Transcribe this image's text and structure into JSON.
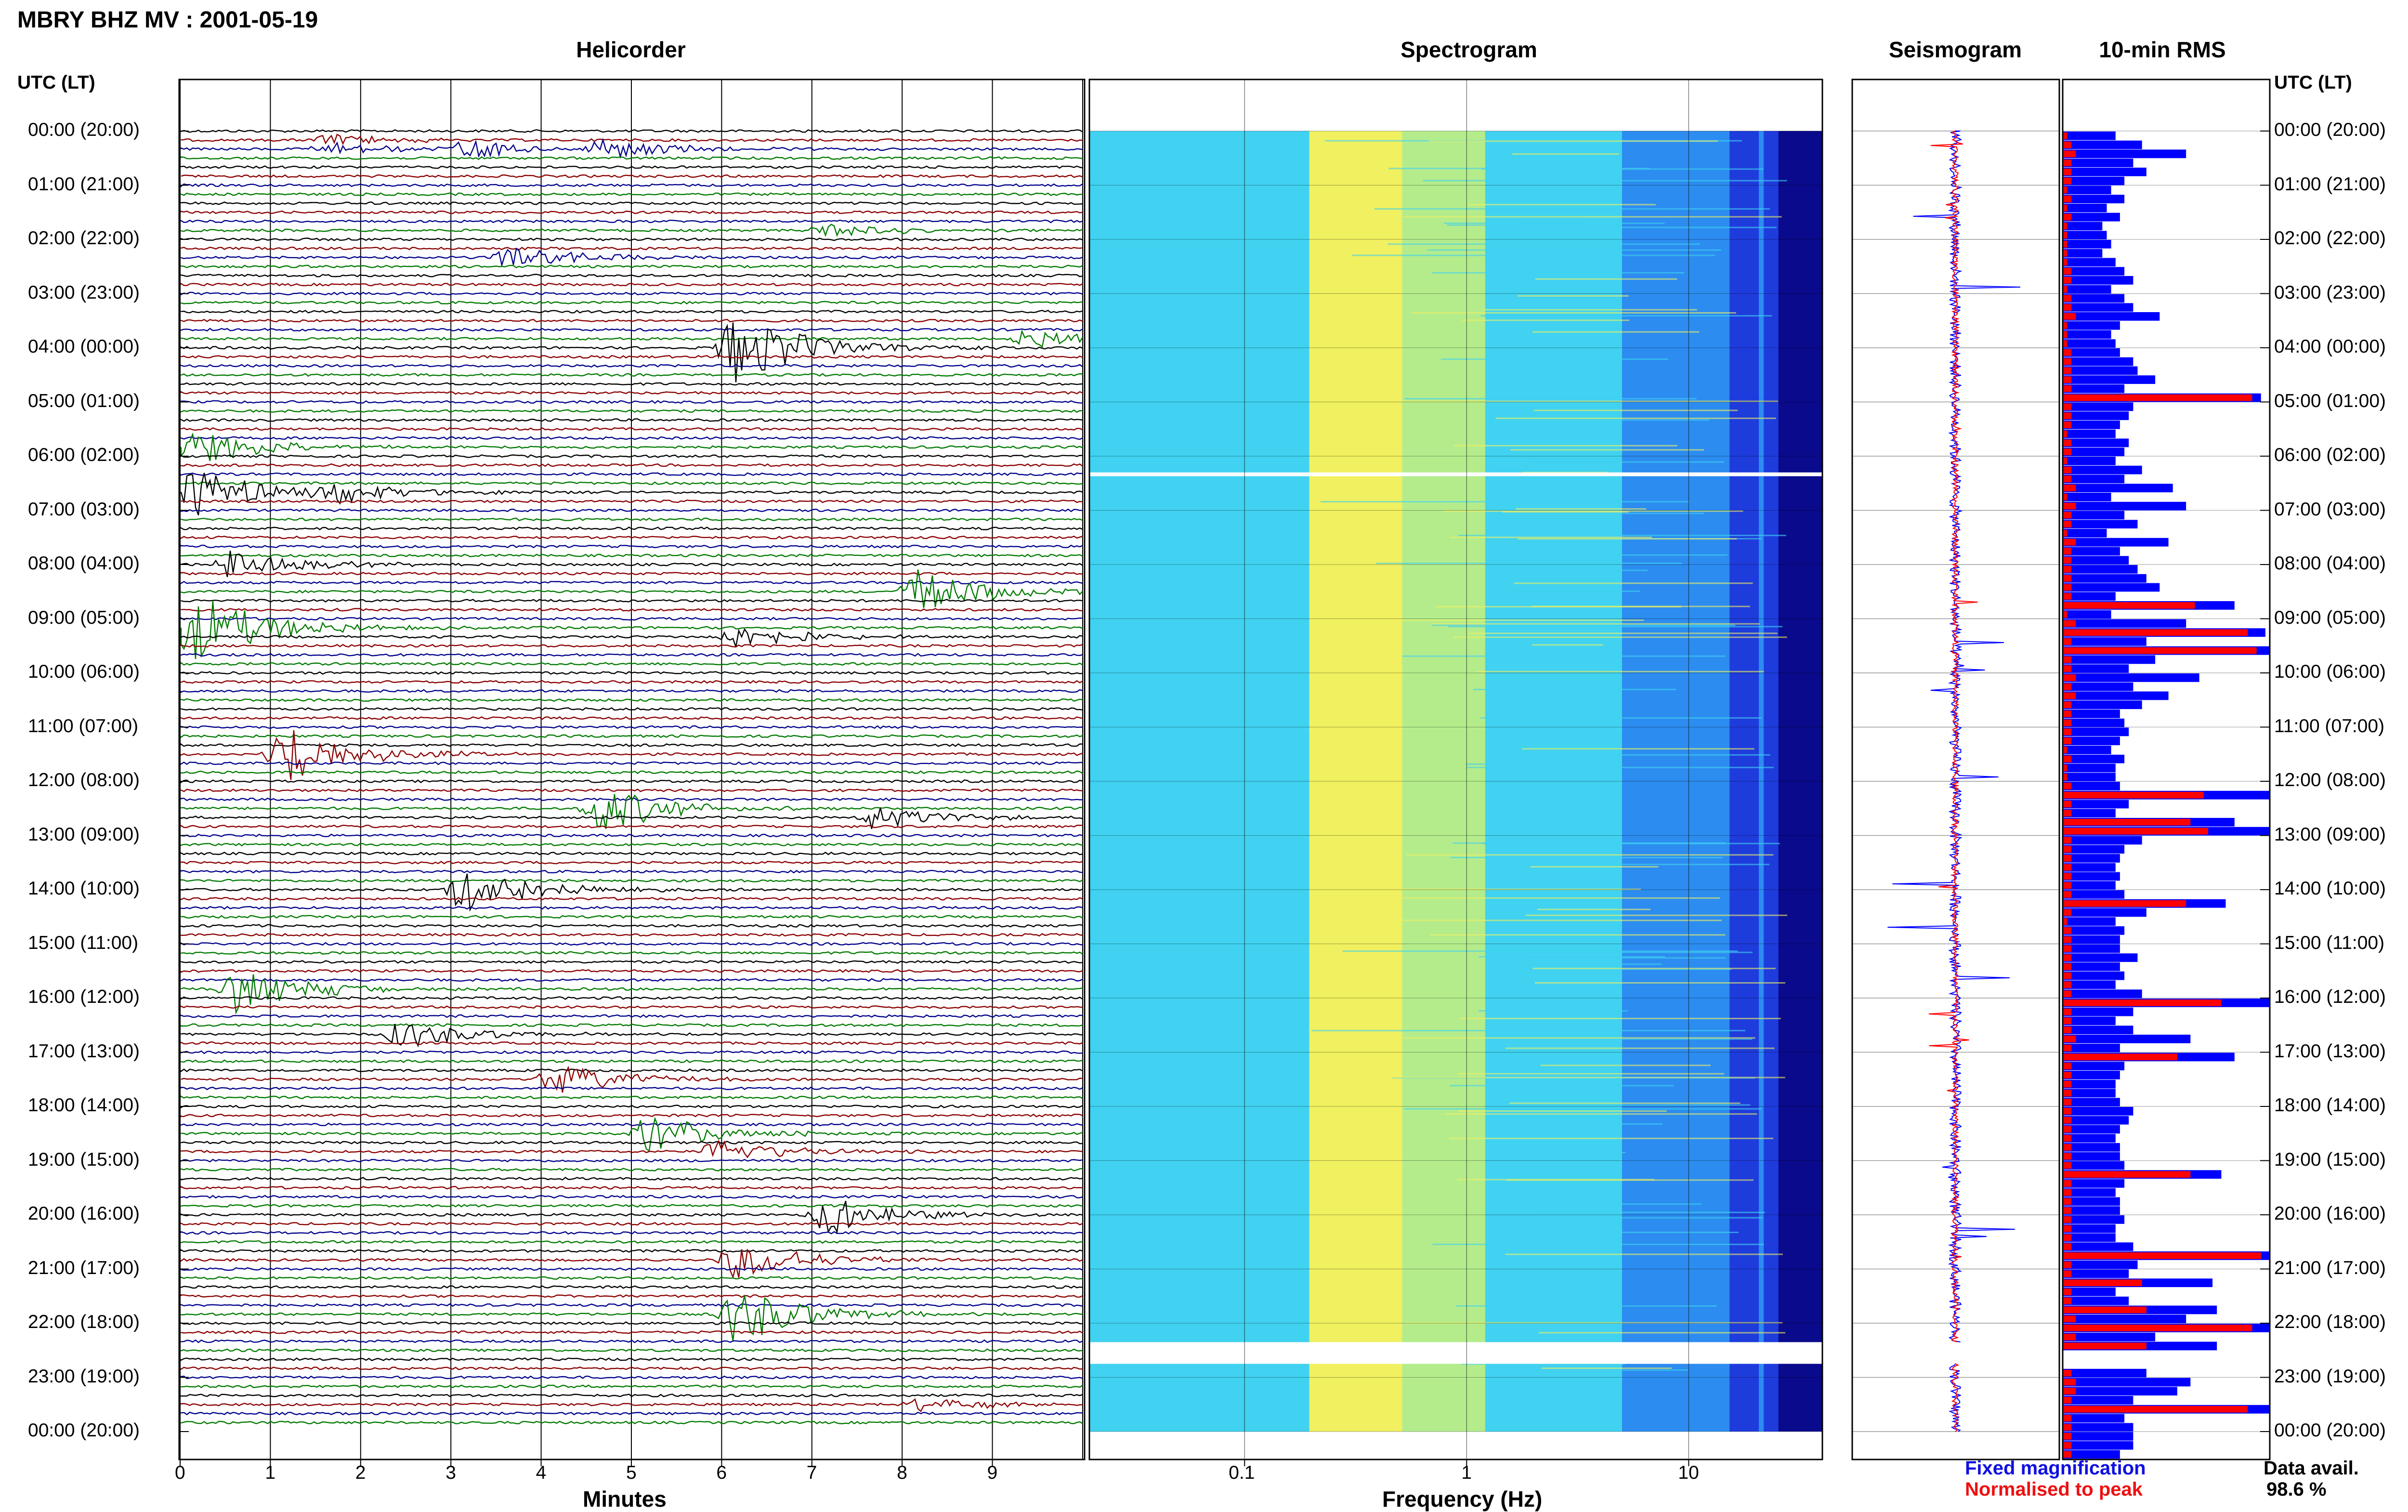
{
  "header": {
    "title": "MBRY BHZ MV : 2001-05-19"
  },
  "panels": {
    "helicorder": "Helicorder",
    "spectrogram": "Spectrogram",
    "seismogram": "Seismogram",
    "rms": "10-min RMS"
  },
  "time_axis_label": "UTC (LT)",
  "time_labels": [
    "00:00 (20:00)",
    "01:00 (21:00)",
    "02:00 (22:00)",
    "03:00 (23:00)",
    "04:00 (00:00)",
    "05:00 (01:00)",
    "06:00 (02:00)",
    "07:00 (03:00)",
    "08:00 (04:00)",
    "09:00 (05:00)",
    "10:00 (06:00)",
    "11:00 (07:00)",
    "12:00 (08:00)",
    "13:00 (09:00)",
    "14:00 (10:00)",
    "15:00 (11:00)",
    "16:00 (12:00)",
    "17:00 (13:00)",
    "18:00 (14:00)",
    "19:00 (15:00)",
    "20:00 (16:00)",
    "21:00 (17:00)",
    "22:00 (18:00)",
    "23:00 (19:00)",
    "00:00 (20:00)"
  ],
  "helicorder_axis": {
    "label": "Minutes",
    "ticks": [
      "0",
      "1",
      "2",
      "3",
      "4",
      "5",
      "6",
      "7",
      "8",
      "9"
    ]
  },
  "spectrogram_axis": {
    "label": "Frequency (Hz)",
    "ticks": [
      "0.1",
      "1",
      "10"
    ]
  },
  "legend": {
    "fixed": "Fixed magnification",
    "normalised": "Normalised to peak"
  },
  "availability": {
    "label": "Data avail.",
    "value": "98.6 %"
  },
  "colors": {
    "trace_cycle": [
      "#000000",
      "#8b0000",
      "#00008b",
      "#007a00"
    ],
    "fixed": "#0000ff",
    "normalised": "#ff0000"
  },
  "chart_data": [
    {
      "type": "line",
      "title": "Helicorder",
      "xlabel": "Minutes",
      "ylabel": "UTC (LT)",
      "xlim": [
        0,
        10
      ],
      "rows_per_hour": 6,
      "row_minutes": 10,
      "trace_colors_cycle": [
        "black",
        "darkred",
        "darkblue",
        "green"
      ],
      "events": [
        {
          "hour": 0.25,
          "minute": 1.5,
          "amp": 0.5
        },
        {
          "hour": 0.3,
          "minute": 3.0,
          "amp": 0.8
        },
        {
          "hour": 0.3,
          "minute": 4.5,
          "amp": 0.9
        },
        {
          "hour": 1.9,
          "minute": 7.0,
          "amp": 0.6
        },
        {
          "hour": 2.3,
          "minute": 3.5,
          "amp": 1.0
        },
        {
          "hour": 3.8,
          "minute": 9.2,
          "amp": 0.8
        },
        {
          "hour": 4.0,
          "minute": 6.0,
          "amp": 3.0
        },
        {
          "hour": 5.8,
          "minute": 0.0,
          "amp": 1.5
        },
        {
          "hour": 6.6,
          "minute": 0.0,
          "amp": 2.0
        },
        {
          "hour": 6.6,
          "minute": 1.5,
          "amp": 1.0
        },
        {
          "hour": 8.0,
          "minute": 0.4,
          "amp": 1.3
        },
        {
          "hour": 8.5,
          "minute": 8.0,
          "amp": 1.8
        },
        {
          "hour": 9.2,
          "minute": 0.0,
          "amp": 3.0
        },
        {
          "hour": 9.4,
          "minute": 6.0,
          "amp": 1.0
        },
        {
          "hour": 11.5,
          "minute": 1.0,
          "amp": 2.5
        },
        {
          "hour": 12.5,
          "minute": 4.5,
          "amp": 2.0
        },
        {
          "hour": 12.7,
          "minute": 7.5,
          "amp": 1.0
        },
        {
          "hour": 14.0,
          "minute": 3.0,
          "amp": 2.0
        },
        {
          "hour": 15.8,
          "minute": 0.5,
          "amp": 2.0
        },
        {
          "hour": 16.6,
          "minute": 2.3,
          "amp": 1.2
        },
        {
          "hour": 17.5,
          "minute": 4.0,
          "amp": 1.3
        },
        {
          "hour": 18.5,
          "minute": 5.0,
          "amp": 1.6
        },
        {
          "hour": 18.8,
          "minute": 5.8,
          "amp": 1.0
        },
        {
          "hour": 20.0,
          "minute": 7.0,
          "amp": 1.6
        },
        {
          "hour": 20.9,
          "minute": 6.0,
          "amp": 1.6
        },
        {
          "hour": 21.9,
          "minute": 6.0,
          "amp": 2.5
        },
        {
          "hour": 23.5,
          "minute": 8.0,
          "amp": 0.6
        }
      ],
      "gaps": [
        {
          "hour": 22.9
        }
      ]
    },
    {
      "type": "heatmap",
      "title": "Spectrogram",
      "xlabel": "Frequency (Hz)",
      "xscale": "log",
      "xlim": [
        0.02,
        40
      ],
      "xticks": [
        0.1,
        1,
        10
      ],
      "peak_band_hz": [
        0.2,
        0.5
      ],
      "colormap": [
        "#0a0a8c",
        "#1e3cdc",
        "#2c8cf0",
        "#40d2f0",
        "#b4ec8c",
        "#f0f060"
      ],
      "gaps": [
        {
          "hour_start": 6.3,
          "hour_end": 6.37
        },
        {
          "hour_start": 22.35,
          "hour_end": 22.75
        }
      ]
    },
    {
      "type": "line",
      "title": "Seismogram",
      "series": [
        {
          "name": "Fixed magnification",
          "color": "blue"
        },
        {
          "name": "Normalised to peak",
          "color": "red"
        }
      ]
    },
    {
      "type": "bar",
      "title": "10-min RMS",
      "orientation": "horizontal",
      "categories_unit": "10-minute bins, 00:00 to 24:00 UTC",
      "series": [
        {
          "name": "Fixed magnification",
          "color": "blue",
          "values": [
            1.2,
            1.8,
            2.8,
            1.6,
            1.9,
            1.4,
            1.1,
            1.4,
            1.0,
            1.3,
            0.9,
            1.0,
            1.1,
            0.9,
            1.2,
            1.4,
            1.6,
            1.1,
            1.4,
            1.6,
            2.2,
            1.3,
            1.1,
            1.2,
            1.3,
            1.6,
            1.7,
            2.1,
            1.4,
            4.5,
            1.6,
            1.5,
            1.3,
            1.2,
            1.5,
            1.4,
            1.2,
            1.8,
            1.4,
            2.5,
            1.1,
            2.8,
            1.4,
            1.7,
            1.0,
            2.4,
            1.3,
            1.5,
            1.7,
            1.9,
            2.2,
            1.2,
            3.9,
            1.1,
            2.8,
            4.6,
            1.9,
            4.7,
            2.1,
            1.5,
            3.1,
            1.6,
            2.4,
            1.8,
            1.3,
            1.4,
            1.5,
            1.3,
            1.1,
            1.4,
            1.2,
            1.2,
            1.3,
            4.7,
            1.5,
            1.2,
            3.9,
            4.7,
            1.8,
            1.4,
            1.3,
            1.2,
            1.3,
            1.2,
            1.4,
            3.7,
            1.9,
            1.2,
            1.4,
            1.3,
            1.3,
            1.7,
            1.3,
            1.4,
            1.2,
            1.8,
            4.7,
            1.6,
            1.2,
            1.6,
            2.9,
            1.3,
            3.9,
            1.4,
            1.3,
            1.2,
            1.2,
            1.3,
            1.6,
            1.5,
            1.3,
            1.2,
            1.3,
            1.3,
            1.4,
            3.6,
            1.4,
            1.2,
            1.3,
            1.3,
            1.4,
            1.2,
            1.2,
            1.6,
            4.7,
            1.7,
            1.5,
            3.4,
            1.2,
            1.5,
            3.5,
            2.8,
            4.7,
            2.1,
            3.5,
            4.4,
            4.7,
            1.9,
            2.9,
            2.6,
            1.6,
            4.7,
            1.4,
            1.6,
            1.6,
            1.6,
            1.3
          ]
        },
        {
          "name": "Normalised to peak",
          "color": "red",
          "values": [
            0.1,
            0.2,
            0.3,
            0.2,
            0.2,
            0.2,
            0.1,
            0.2,
            0.1,
            0.2,
            0.1,
            0.1,
            0.1,
            0.1,
            0.1,
            0.2,
            0.2,
            0.1,
            0.2,
            0.2,
            0.3,
            0.1,
            0.1,
            0.1,
            0.2,
            0.2,
            0.2,
            0.2,
            0.2,
            4.3,
            0.2,
            0.2,
            0.2,
            0.1,
            0.2,
            0.2,
            0.1,
            0.2,
            0.2,
            0.3,
            0.1,
            0.3,
            0.2,
            0.2,
            0.1,
            0.3,
            0.2,
            0.2,
            0.2,
            0.2,
            0.2,
            0.2,
            3.0,
            0.1,
            0.3,
            4.2,
            0.2,
            4.4,
            0.2,
            0.2,
            0.3,
            0.2,
            0.3,
            0.2,
            0.2,
            0.2,
            0.2,
            0.2,
            0.1,
            0.2,
            0.1,
            0.1,
            0.2,
            3.2,
            0.2,
            0.2,
            2.9,
            3.3,
            0.2,
            0.2,
            0.2,
            0.2,
            0.2,
            0.2,
            0.2,
            2.8,
            0.2,
            0.1,
            0.2,
            0.2,
            0.2,
            0.2,
            0.2,
            0.2,
            0.2,
            0.2,
            3.6,
            0.2,
            0.2,
            0.2,
            0.3,
            0.2,
            2.6,
            0.2,
            0.2,
            0.2,
            0.2,
            0.2,
            0.2,
            0.2,
            0.2,
            0.2,
            0.2,
            0.2,
            0.2,
            2.9,
            0.2,
            0.2,
            0.2,
            0.2,
            0.2,
            0.2,
            0.2,
            0.2,
            4.5,
            0.2,
            0.2,
            1.8,
            0.2,
            0.2,
            1.9,
            0.3,
            4.3,
            0.3,
            1.9,
            3.8,
            4.1,
            0.2,
            0.3,
            0.3,
            0.2,
            4.2,
            0.2,
            0.2,
            0.2,
            0.2,
            0.2
          ]
        }
      ]
    }
  ]
}
